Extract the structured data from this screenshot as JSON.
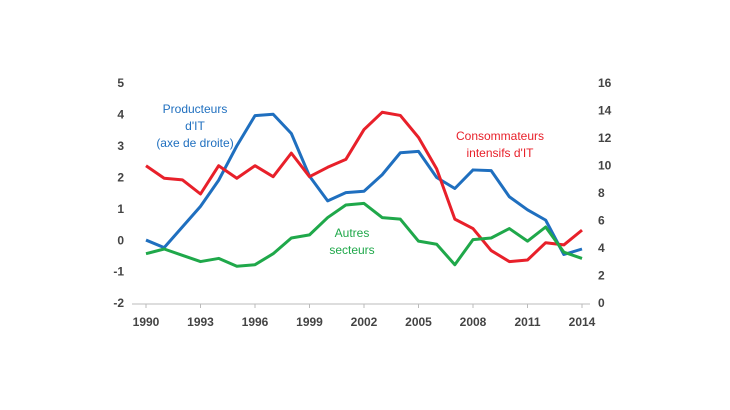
{
  "chart_data": {
    "type": "line",
    "x": [
      1990,
      1991,
      1992,
      1993,
      1994,
      1995,
      1996,
      1997,
      1998,
      1999,
      2000,
      2001,
      2002,
      2003,
      2004,
      2005,
      2006,
      2007,
      2008,
      2009,
      2010,
      2011,
      2012,
      2013,
      2014
    ],
    "xlim": [
      1990,
      2014
    ],
    "xticks": [
      1990,
      1993,
      1996,
      1999,
      2002,
      2005,
      2008,
      2011,
      2014
    ],
    "ylim": [
      -2,
      5
    ],
    "yticks": [
      -2,
      -1,
      0,
      1,
      2,
      3,
      4,
      5
    ],
    "y2lim": [
      0,
      16
    ],
    "y2ticks": [
      0,
      2,
      4,
      6,
      8,
      10,
      12,
      14,
      16
    ],
    "series": [
      {
        "name": [
          "Producteurs",
          "d'IT",
          "(axe de droite)"
        ],
        "color": "#1f6fbf",
        "axis": "y2",
        "values": [
          4.65,
          4.1,
          5.6,
          7.1,
          9.0,
          11.5,
          13.7,
          13.8,
          12.4,
          9.3,
          7.5,
          8.1,
          8.2,
          9.4,
          11.0,
          11.1,
          9.2,
          8.4,
          9.75,
          9.7,
          7.8,
          6.85,
          6.1,
          3.6,
          4.0
        ]
      },
      {
        "name": [
          "Consommateurs",
          "intensifs d'IT"
        ],
        "color": "#e8202a",
        "values": [
          2.4,
          2.0,
          1.95,
          1.5,
          2.4,
          2.0,
          2.4,
          2.05,
          2.8,
          2.05,
          2.35,
          2.6,
          3.55,
          4.1,
          4.0,
          3.3,
          2.3,
          0.7,
          0.4,
          -0.3,
          -0.65,
          -0.6,
          -0.05,
          -0.12,
          0.35
        ]
      },
      {
        "name": [
          "Autres",
          "secteurs"
        ],
        "color": "#1fa84a",
        "values": [
          -0.4,
          -0.25,
          -0.45,
          -0.65,
          -0.55,
          -0.8,
          -0.75,
          -0.4,
          0.1,
          0.2,
          0.75,
          1.15,
          1.2,
          0.75,
          0.7,
          0.0,
          -0.1,
          -0.75,
          0.05,
          0.1,
          0.4,
          0.0,
          0.45,
          -0.35,
          -0.55
        ]
      }
    ]
  }
}
